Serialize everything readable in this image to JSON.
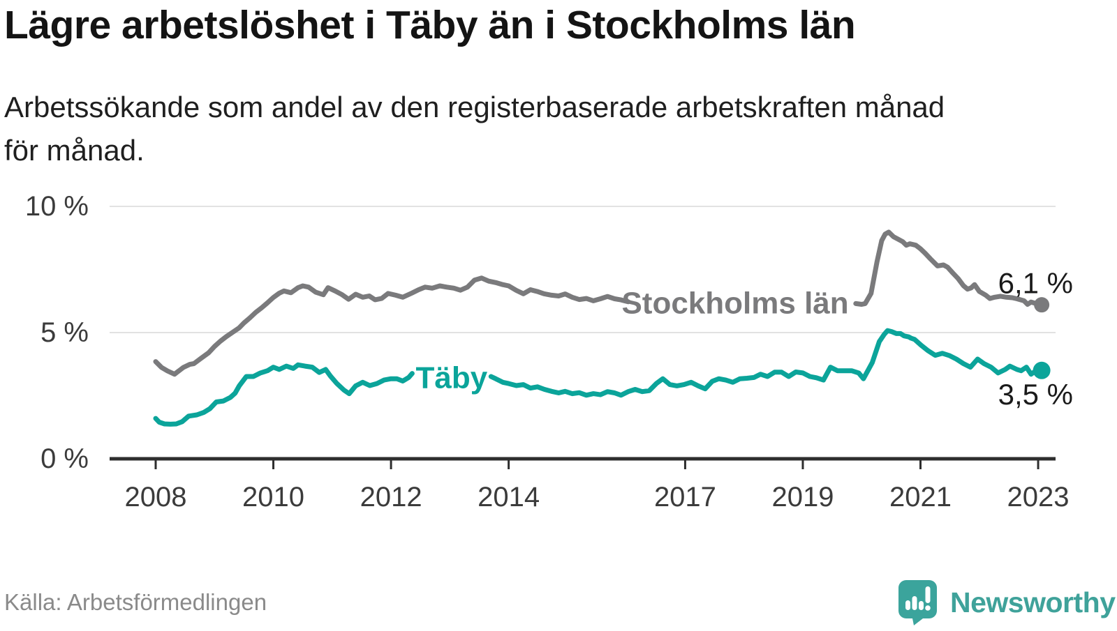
{
  "page": {
    "title": "Lägre arbetslöshet i Täby än i Stockholms län",
    "subtitle_lines": [
      "Arbetssökande som andel av den registerbaserade arbetskraften månad",
      "för månad."
    ],
    "source": "Källa: Arbetsförmedlingen",
    "brand": "Newsworthy"
  },
  "chart_data": {
    "type": "line",
    "title": "Lägre arbetslöshet i Täby än i Stockholms län",
    "subtitle": "Arbetssökande som andel av den registerbaserade arbetskraften månad för månad.",
    "unit": "%",
    "grid": "horizontal",
    "x_range": [
      2007.23,
      2023.3
    ],
    "ylim": [
      0,
      10
    ],
    "x_axis": {
      "ticks": [
        {
          "value": 2008,
          "label": "2008"
        },
        {
          "value": 2010,
          "label": "2010"
        },
        {
          "value": 2012,
          "label": "2012"
        },
        {
          "value": 2014,
          "label": "2014"
        },
        {
          "value": 2017,
          "label": "2017"
        },
        {
          "value": 2019,
          "label": "2019"
        },
        {
          "value": 2021,
          "label": "2021"
        },
        {
          "value": 2023,
          "label": "2023"
        }
      ]
    },
    "y_axis": {
      "ticks": [
        {
          "value": 0,
          "label": "0 %"
        },
        {
          "value": 5,
          "label": "5 %"
        },
        {
          "value": 10,
          "label": "10 %"
        }
      ]
    },
    "series": [
      {
        "name": "Stockholms län",
        "color": "#7a7a7c",
        "end_value": 6.1,
        "end_label": "6,1 %",
        "label_gap": [
          2016.06,
          2019.9
        ],
        "label_pos": {
          "x": 2017.85,
          "y": 6.16
        },
        "dot_radius": 11,
        "points": [
          [
            2008.0,
            3.85
          ],
          [
            2008.1,
            3.62
          ],
          [
            2008.2,
            3.48
          ],
          [
            2008.32,
            3.35
          ],
          [
            2008.47,
            3.62
          ],
          [
            2008.58,
            3.74
          ],
          [
            2008.65,
            3.77
          ],
          [
            2008.77,
            3.98
          ],
          [
            2008.9,
            4.2
          ],
          [
            2009.0,
            4.45
          ],
          [
            2009.1,
            4.66
          ],
          [
            2009.2,
            4.84
          ],
          [
            2009.3,
            5.0
          ],
          [
            2009.42,
            5.19
          ],
          [
            2009.5,
            5.38
          ],
          [
            2009.6,
            5.58
          ],
          [
            2009.7,
            5.8
          ],
          [
            2009.8,
            5.98
          ],
          [
            2009.9,
            6.18
          ],
          [
            2010.0,
            6.39
          ],
          [
            2010.1,
            6.56
          ],
          [
            2010.18,
            6.65
          ],
          [
            2010.3,
            6.58
          ],
          [
            2010.42,
            6.78
          ],
          [
            2010.5,
            6.85
          ],
          [
            2010.6,
            6.8
          ],
          [
            2010.72,
            6.6
          ],
          [
            2010.85,
            6.5
          ],
          [
            2010.93,
            6.78
          ],
          [
            2011.05,
            6.65
          ],
          [
            2011.17,
            6.5
          ],
          [
            2011.28,
            6.32
          ],
          [
            2011.4,
            6.52
          ],
          [
            2011.52,
            6.4
          ],
          [
            2011.63,
            6.45
          ],
          [
            2011.73,
            6.3
          ],
          [
            2011.84,
            6.35
          ],
          [
            2011.95,
            6.55
          ],
          [
            2012.08,
            6.48
          ],
          [
            2012.2,
            6.4
          ],
          [
            2012.35,
            6.56
          ],
          [
            2012.47,
            6.7
          ],
          [
            2012.58,
            6.8
          ],
          [
            2012.7,
            6.76
          ],
          [
            2012.83,
            6.85
          ],
          [
            2012.95,
            6.8
          ],
          [
            2013.07,
            6.76
          ],
          [
            2013.18,
            6.68
          ],
          [
            2013.3,
            6.8
          ],
          [
            2013.42,
            7.08
          ],
          [
            2013.54,
            7.16
          ],
          [
            2013.66,
            7.04
          ],
          [
            2013.78,
            6.98
          ],
          [
            2013.9,
            6.9
          ],
          [
            2014.0,
            6.85
          ],
          [
            2014.13,
            6.67
          ],
          [
            2014.25,
            6.54
          ],
          [
            2014.37,
            6.7
          ],
          [
            2014.5,
            6.62
          ],
          [
            2014.6,
            6.54
          ],
          [
            2014.73,
            6.48
          ],
          [
            2014.85,
            6.45
          ],
          [
            2014.96,
            6.53
          ],
          [
            2015.08,
            6.4
          ],
          [
            2015.2,
            6.31
          ],
          [
            2015.32,
            6.35
          ],
          [
            2015.44,
            6.26
          ],
          [
            2015.56,
            6.34
          ],
          [
            2015.68,
            6.43
          ],
          [
            2015.8,
            6.34
          ],
          [
            2015.9,
            6.3
          ],
          [
            2016.03,
            6.22
          ],
          [
            2019.9,
            6.15
          ],
          [
            2020.0,
            6.12
          ],
          [
            2020.06,
            6.15
          ],
          [
            2020.16,
            6.55
          ],
          [
            2020.26,
            7.8
          ],
          [
            2020.34,
            8.64
          ],
          [
            2020.4,
            8.9
          ],
          [
            2020.46,
            8.98
          ],
          [
            2020.54,
            8.8
          ],
          [
            2020.62,
            8.7
          ],
          [
            2020.7,
            8.6
          ],
          [
            2020.76,
            8.46
          ],
          [
            2020.82,
            8.52
          ],
          [
            2020.92,
            8.46
          ],
          [
            2021.0,
            8.32
          ],
          [
            2021.08,
            8.14
          ],
          [
            2021.17,
            7.92
          ],
          [
            2021.29,
            7.64
          ],
          [
            2021.39,
            7.68
          ],
          [
            2021.46,
            7.59
          ],
          [
            2021.55,
            7.36
          ],
          [
            2021.64,
            7.14
          ],
          [
            2021.73,
            6.86
          ],
          [
            2021.8,
            6.72
          ],
          [
            2021.86,
            6.77
          ],
          [
            2021.92,
            6.9
          ],
          [
            2022.0,
            6.63
          ],
          [
            2022.11,
            6.48
          ],
          [
            2022.18,
            6.35
          ],
          [
            2022.26,
            6.4
          ],
          [
            2022.36,
            6.44
          ],
          [
            2022.46,
            6.4
          ],
          [
            2022.56,
            6.38
          ],
          [
            2022.64,
            6.34
          ],
          [
            2022.76,
            6.26
          ],
          [
            2022.82,
            6.12
          ],
          [
            2022.88,
            6.21
          ],
          [
            2022.95,
            6.16
          ],
          [
            2023.06,
            6.1
          ]
        ]
      },
      {
        "name": "Täby",
        "color": "#0ba49a",
        "end_value": 3.5,
        "end_label": "3,5 %",
        "label_gap": [
          2012.37,
          2013.69
        ],
        "label_pos": {
          "x": 2013.03,
          "y": 3.2
        },
        "dot_radius": 12.5,
        "points": [
          [
            2008.0,
            1.6
          ],
          [
            2008.06,
            1.45
          ],
          [
            2008.15,
            1.38
          ],
          [
            2008.25,
            1.37
          ],
          [
            2008.35,
            1.38
          ],
          [
            2008.45,
            1.47
          ],
          [
            2008.56,
            1.69
          ],
          [
            2008.7,
            1.74
          ],
          [
            2008.82,
            1.84
          ],
          [
            2008.92,
            1.98
          ],
          [
            2009.03,
            2.25
          ],
          [
            2009.15,
            2.29
          ],
          [
            2009.27,
            2.43
          ],
          [
            2009.35,
            2.6
          ],
          [
            2009.42,
            2.89
          ],
          [
            2009.54,
            3.26
          ],
          [
            2009.66,
            3.26
          ],
          [
            2009.78,
            3.4
          ],
          [
            2009.9,
            3.49
          ],
          [
            2010.0,
            3.63
          ],
          [
            2010.1,
            3.54
          ],
          [
            2010.22,
            3.67
          ],
          [
            2010.34,
            3.58
          ],
          [
            2010.42,
            3.72
          ],
          [
            2010.54,
            3.67
          ],
          [
            2010.66,
            3.63
          ],
          [
            2010.78,
            3.42
          ],
          [
            2010.89,
            3.54
          ],
          [
            2010.97,
            3.28
          ],
          [
            2011.08,
            2.98
          ],
          [
            2011.2,
            2.72
          ],
          [
            2011.29,
            2.58
          ],
          [
            2011.4,
            2.89
          ],
          [
            2011.52,
            3.03
          ],
          [
            2011.64,
            2.9
          ],
          [
            2011.76,
            2.98
          ],
          [
            2011.88,
            3.12
          ],
          [
            2012.0,
            3.17
          ],
          [
            2012.1,
            3.17
          ],
          [
            2012.2,
            3.08
          ],
          [
            2012.3,
            3.22
          ],
          [
            2012.36,
            3.38
          ],
          [
            2013.7,
            3.26
          ],
          [
            2013.78,
            3.17
          ],
          [
            2013.9,
            3.03
          ],
          [
            2014.0,
            2.98
          ],
          [
            2014.13,
            2.9
          ],
          [
            2014.25,
            2.94
          ],
          [
            2014.37,
            2.8
          ],
          [
            2014.49,
            2.85
          ],
          [
            2014.61,
            2.75
          ],
          [
            2014.73,
            2.67
          ],
          [
            2014.85,
            2.61
          ],
          [
            2014.96,
            2.67
          ],
          [
            2015.08,
            2.58
          ],
          [
            2015.2,
            2.62
          ],
          [
            2015.32,
            2.52
          ],
          [
            2015.44,
            2.58
          ],
          [
            2015.56,
            2.54
          ],
          [
            2015.68,
            2.66
          ],
          [
            2015.8,
            2.61
          ],
          [
            2015.91,
            2.52
          ],
          [
            2016.03,
            2.66
          ],
          [
            2016.15,
            2.75
          ],
          [
            2016.27,
            2.66
          ],
          [
            2016.39,
            2.7
          ],
          [
            2016.51,
            2.98
          ],
          [
            2016.62,
            3.17
          ],
          [
            2016.74,
            2.94
          ],
          [
            2016.86,
            2.89
          ],
          [
            2016.98,
            2.94
          ],
          [
            2017.1,
            3.03
          ],
          [
            2017.22,
            2.89
          ],
          [
            2017.34,
            2.77
          ],
          [
            2017.46,
            3.07
          ],
          [
            2017.57,
            3.17
          ],
          [
            2017.69,
            3.12
          ],
          [
            2017.81,
            3.03
          ],
          [
            2017.93,
            3.17
          ],
          [
            2018.05,
            3.19
          ],
          [
            2018.17,
            3.22
          ],
          [
            2018.28,
            3.35
          ],
          [
            2018.4,
            3.26
          ],
          [
            2018.52,
            3.43
          ],
          [
            2018.64,
            3.43
          ],
          [
            2018.76,
            3.26
          ],
          [
            2018.88,
            3.44
          ],
          [
            2019.0,
            3.4
          ],
          [
            2019.12,
            3.26
          ],
          [
            2019.23,
            3.21
          ],
          [
            2019.35,
            3.12
          ],
          [
            2019.47,
            3.63
          ],
          [
            2019.59,
            3.49
          ],
          [
            2019.71,
            3.49
          ],
          [
            2019.83,
            3.49
          ],
          [
            2019.95,
            3.4
          ],
          [
            2020.03,
            3.17
          ],
          [
            2020.18,
            3.81
          ],
          [
            2020.3,
            4.64
          ],
          [
            2020.38,
            4.92
          ],
          [
            2020.44,
            5.08
          ],
          [
            2020.51,
            5.04
          ],
          [
            2020.59,
            4.96
          ],
          [
            2020.66,
            4.96
          ],
          [
            2020.72,
            4.87
          ],
          [
            2020.8,
            4.83
          ],
          [
            2020.84,
            4.78
          ],
          [
            2020.9,
            4.73
          ],
          [
            2021.01,
            4.5
          ],
          [
            2021.13,
            4.28
          ],
          [
            2021.25,
            4.1
          ],
          [
            2021.37,
            4.18
          ],
          [
            2021.49,
            4.09
          ],
          [
            2021.61,
            3.95
          ],
          [
            2021.73,
            3.77
          ],
          [
            2021.85,
            3.63
          ],
          [
            2021.97,
            3.95
          ],
          [
            2022.08,
            3.77
          ],
          [
            2022.2,
            3.63
          ],
          [
            2022.32,
            3.4
          ],
          [
            2022.44,
            3.54
          ],
          [
            2022.52,
            3.67
          ],
          [
            2022.64,
            3.54
          ],
          [
            2022.71,
            3.49
          ],
          [
            2022.8,
            3.63
          ],
          [
            2022.88,
            3.35
          ],
          [
            2023.0,
            3.55
          ],
          [
            2023.06,
            3.5
          ]
        ]
      }
    ]
  }
}
